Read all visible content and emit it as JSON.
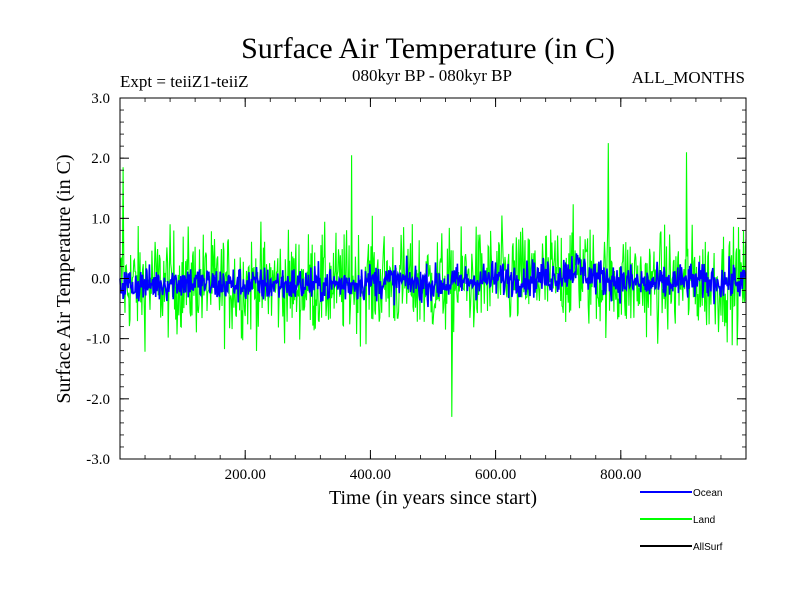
{
  "chart_data": {
    "type": "line",
    "title": "Surface Air Temperature (in C)",
    "subtitle_left": "Expt = teiiZ1-teiiZ",
    "subtitle_center": "080kyr BP - 080kyr BP",
    "subtitle_right": "ALL_MONTHS",
    "xlabel": "Time (in years since start)",
    "ylabel": "Surface Air Temperature (in C)",
    "xlim": [
      0,
      1000
    ],
    "ylim": [
      -3.0,
      3.0
    ],
    "x_ticks": [
      200,
      400,
      600,
      800
    ],
    "x_tick_labels": [
      "200.00",
      "400.00",
      "600.00",
      "800.00"
    ],
    "y_ticks": [
      -3,
      -2,
      -1,
      0,
      1,
      2,
      3
    ],
    "y_tick_labels": [
      "-3.0",
      "-2.0",
      "-1.0",
      "0.0",
      "1.0",
      "2.0",
      "3.0"
    ],
    "grid": false,
    "legend_position": "bottom-right, outside plot",
    "series": [
      {
        "name": "Ocean",
        "color": "#0000ff",
        "x": [
          0,
          50,
          100,
          150,
          200,
          250,
          300,
          350,
          400,
          450,
          500,
          550,
          600,
          650,
          700,
          730,
          750,
          800,
          850,
          900,
          950,
          1000
        ],
        "mean": [
          -0.1,
          -0.1,
          -0.05,
          -0.1,
          -0.1,
          -0.1,
          -0.1,
          -0.1,
          -0.05,
          -0.05,
          -0.1,
          -0.05,
          0.0,
          0.0,
          0.05,
          0.2,
          0.05,
          -0.05,
          -0.1,
          -0.05,
          -0.05,
          -0.05
        ],
        "approx_amplitude": 0.3
      },
      {
        "name": "Land",
        "color": "#00ff00",
        "x": [
          0,
          50,
          100,
          150,
          200,
          250,
          300,
          350,
          400,
          450,
          500,
          550,
          600,
          650,
          700,
          730,
          750,
          800,
          850,
          900,
          950,
          1000
        ],
        "mean": [
          -0.1,
          -0.1,
          -0.05,
          -0.1,
          -0.1,
          -0.1,
          -0.1,
          -0.1,
          -0.05,
          -0.05,
          -0.1,
          -0.05,
          0.0,
          0.0,
          0.05,
          0.2,
          0.05,
          -0.05,
          -0.1,
          -0.05,
          -0.05,
          -0.05
        ],
        "approx_amplitude": 0.85,
        "notable_extremes": [
          {
            "x": 5,
            "y": 1.85
          },
          {
            "x": 370,
            "y": 2.05
          },
          {
            "x": 530,
            "y": -2.3
          },
          {
            "x": 780,
            "y": 2.25
          },
          {
            "x": 905,
            "y": 2.1
          }
        ]
      },
      {
        "name": "AllSurf",
        "color": "#000000",
        "x": [],
        "mean": [],
        "approx_amplitude": 0
      }
    ]
  }
}
